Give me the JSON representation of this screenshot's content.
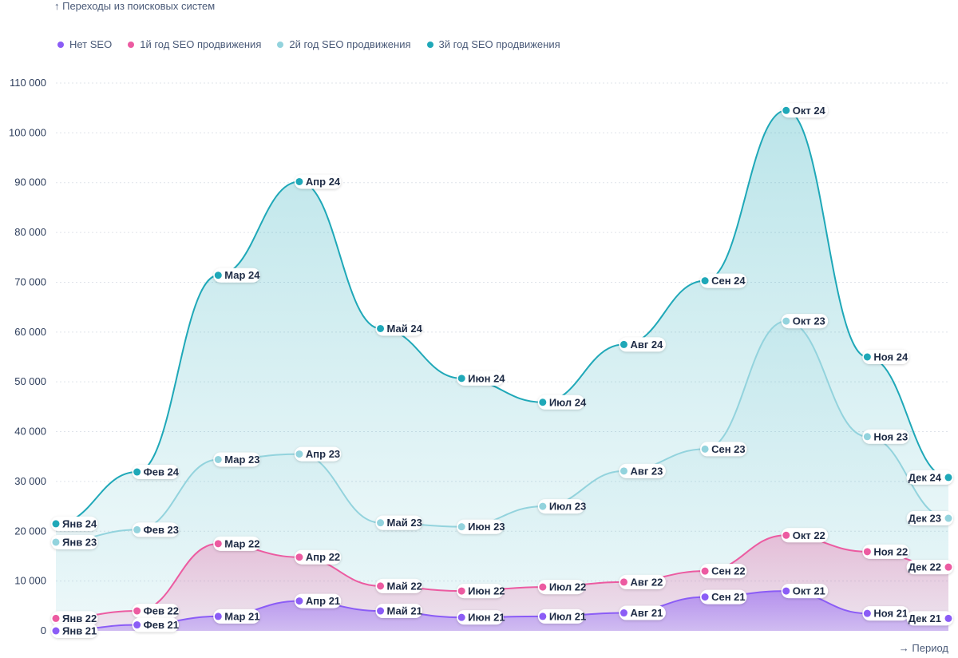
{
  "chart_data": {
    "type": "area",
    "y_axis_title": "↑ Переходы из поисковых систем",
    "x_axis_title": "→ Период",
    "ylim": [
      0,
      110000
    ],
    "y_ticks": [
      "0",
      "10 000",
      "20 000",
      "30 000",
      "40 000",
      "50 000",
      "60 000",
      "70 000",
      "80 000",
      "90 000",
      "100 000",
      "110 000"
    ],
    "grid": true,
    "legend_position": "top-left",
    "series": [
      {
        "name": "Нет SEO",
        "color": "#8B5CF6",
        "values": [
          0,
          1200,
          2900,
          6000,
          4000,
          2700,
          2900,
          3600,
          6800,
          8000,
          3500,
          2500
        ],
        "labels": [
          "Янв 21",
          "Фев 21",
          "Мар 21",
          "Апр 21",
          "Май 21",
          "Июн 21",
          "Июл 21",
          "Авг 21",
          "Сен 21",
          "Окт 21",
          "Ноя 21",
          "Дек 21"
        ]
      },
      {
        "name": "1й год SEO продвижения",
        "color": "#EC5BA1",
        "values": [
          2500,
          4000,
          17500,
          14800,
          9000,
          8000,
          8800,
          9800,
          12000,
          19200,
          15900,
          12800
        ],
        "labels": [
          "Янв 22",
          "Фев 22",
          "Мар 22",
          "Апр 22",
          "Май 22",
          "Июн 22",
          "Июл 22",
          "Авг 22",
          "Сен 22",
          "Окт 22",
          "Ноя 22",
          "Дек 22"
        ]
      },
      {
        "name": "2й год SEO продвижения",
        "color": "#93D3DD",
        "values": [
          17800,
          20300,
          34400,
          35500,
          21700,
          20900,
          25000,
          32100,
          36500,
          62200,
          39000,
          22600
        ],
        "labels": [
          "Янв 23",
          "Фев 23",
          "Мар 23",
          "Апр 23",
          "Май 23",
          "Июн 23",
          "Июл 23",
          "Авг 23",
          "Сен 23",
          "Окт 23",
          "Ноя 23",
          "Дек 23"
        ]
      },
      {
        "name": "3й год SEO продвижения",
        "color": "#1FA8B8",
        "values": [
          21500,
          31900,
          71400,
          90200,
          60700,
          50700,
          45900,
          57500,
          70300,
          104500,
          55000,
          30800
        ],
        "labels": [
          "Янв 24",
          "Фев 24",
          "Мар 24",
          "Апр 24",
          "Май 24",
          "Июн 24",
          "Июл 24",
          "Авг 24",
          "Сен 24",
          "Окт 24",
          "Ноя 24",
          "Дек 24"
        ]
      }
    ]
  }
}
